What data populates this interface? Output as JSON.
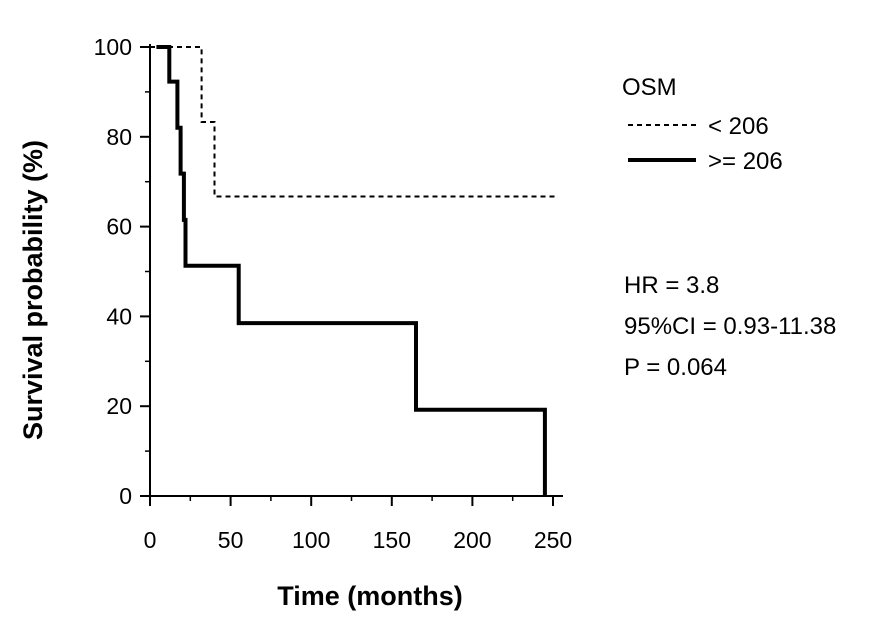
{
  "chart_data": {
    "type": "line",
    "title": "",
    "xlabel": "Time (months)",
    "ylabel": "Survival probability  (%)",
    "xlim": [
      0,
      250
    ],
    "ylim": [
      0,
      100
    ],
    "xticks": [
      0,
      50,
      100,
      150,
      200,
      250
    ],
    "yticks": [
      0,
      20,
      40,
      60,
      80,
      100
    ],
    "x_tick_labels": [
      "0",
      "50",
      "100",
      "150",
      "200",
      "250"
    ],
    "y_tick_labels": [
      "0",
      "20",
      "40",
      "60",
      "80",
      "100"
    ],
    "grid": false,
    "step": true,
    "legend": {
      "title": "OSM",
      "position": "right"
    },
    "series": [
      {
        "name": "< 206",
        "style": "dashed",
        "color": "#000000",
        "x": [
          0,
          32,
          32,
          40,
          40,
          253
        ],
        "y": [
          100,
          100,
          83.3,
          83.3,
          66.7,
          66.7
        ]
      },
      {
        "name": ">= 206",
        "style": "solid",
        "color": "#000000",
        "x": [
          4,
          4,
          12,
          12,
          17,
          17,
          19,
          19,
          21,
          21,
          22,
          22,
          55,
          55,
          165,
          165,
          245,
          245
        ],
        "y": [
          100,
          100,
          100,
          92.3,
          92.3,
          82,
          82,
          71.8,
          71.8,
          61.5,
          61.5,
          51.3,
          51.3,
          38.5,
          38.5,
          19.2,
          19.2,
          0
        ]
      }
    ],
    "annotations": [
      "HR = 3.8",
      "95%CI = 0.93-11.38",
      "P = 0.064"
    ]
  }
}
